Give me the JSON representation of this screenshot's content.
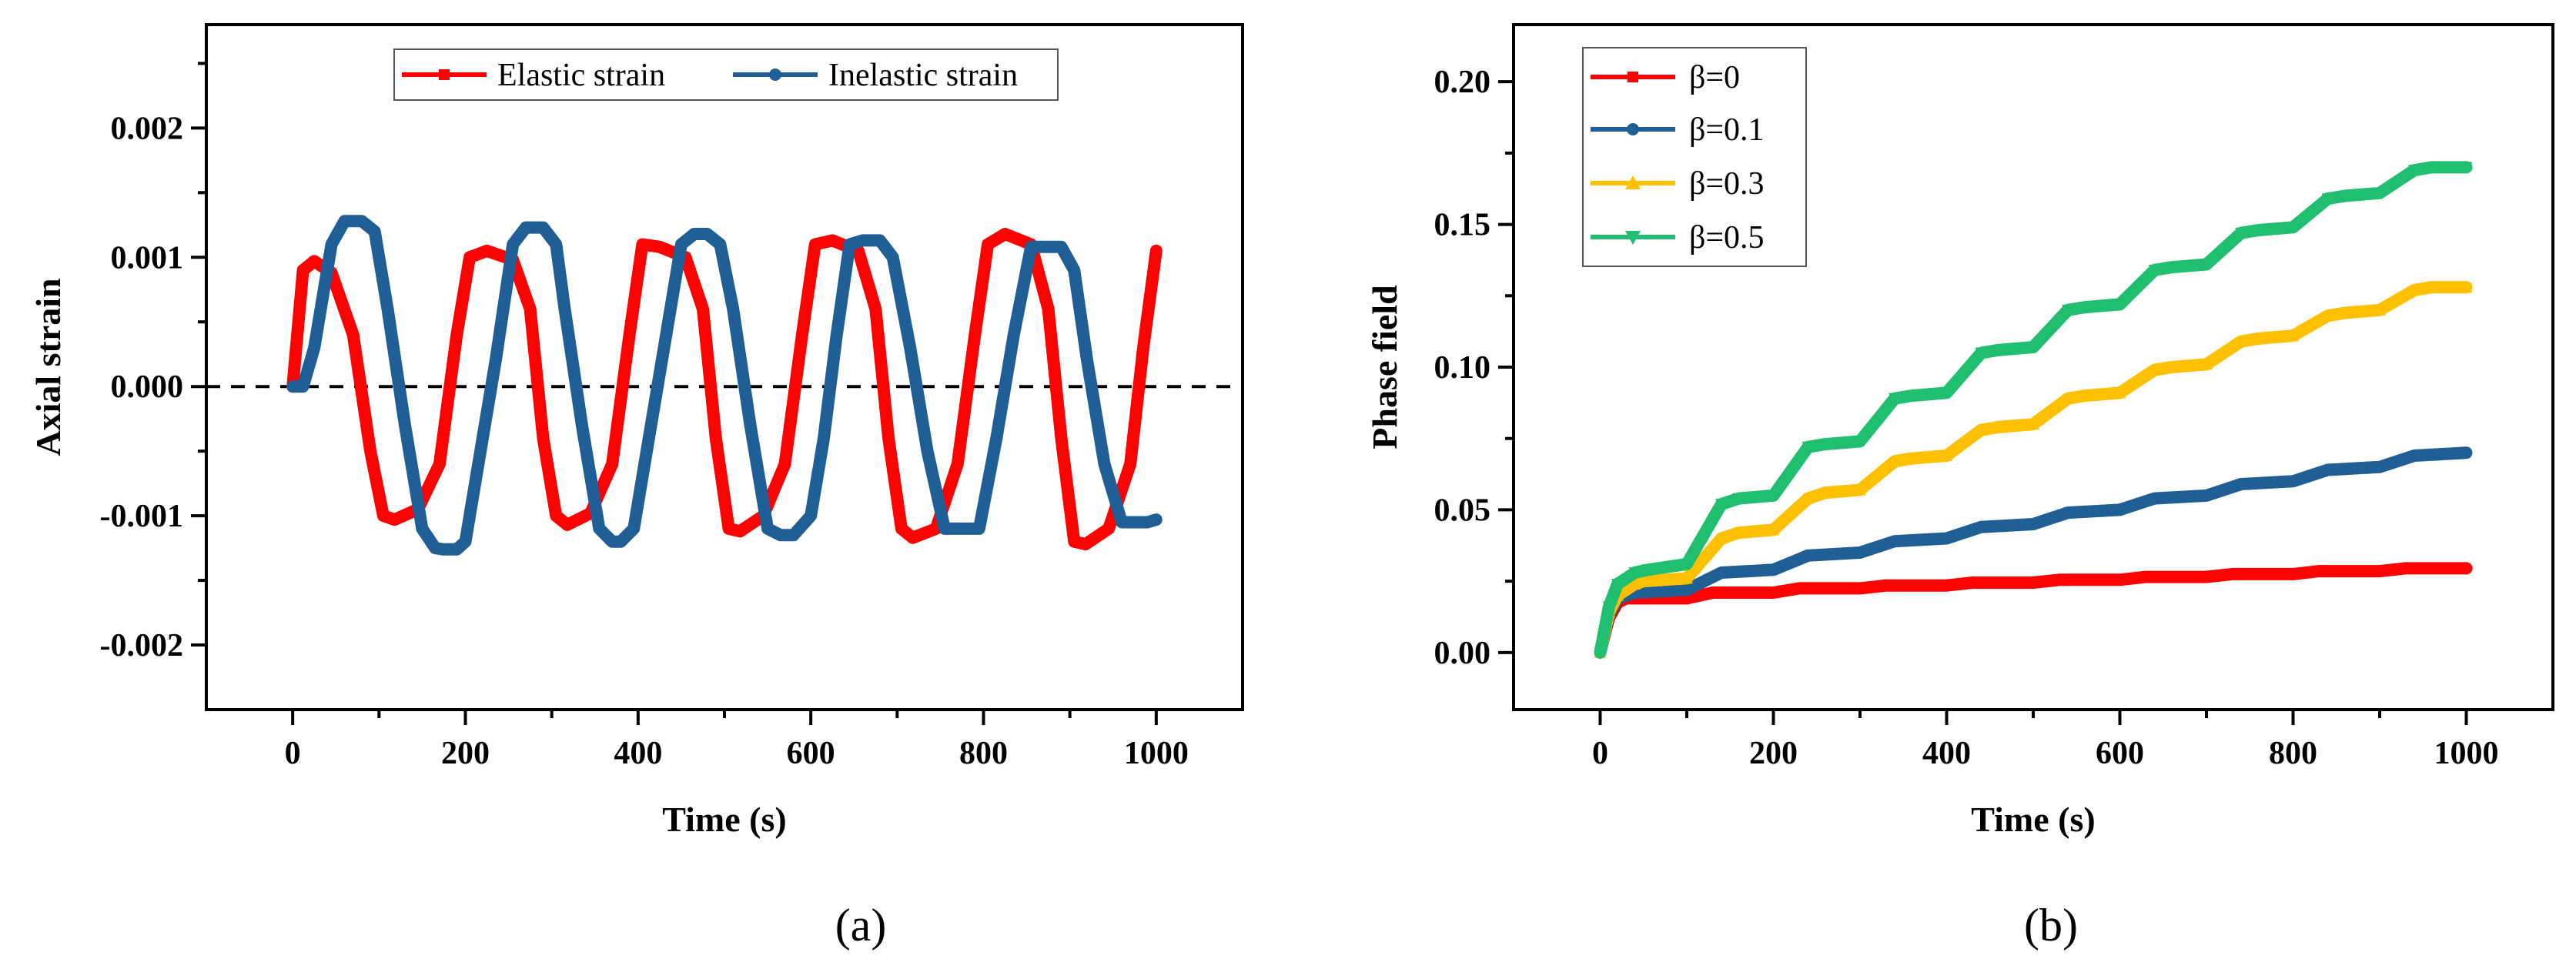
{
  "chart_data": [
    {
      "type": "line",
      "panel_label": "(a)",
      "xlabel": "Time (s)",
      "ylabel": "Axial strain",
      "xlim": [
        -100,
        1100
      ],
      "ylim": [
        -0.0025,
        0.0028
      ],
      "xticks": [
        0,
        200,
        400,
        600,
        800,
        1000
      ],
      "xtick_labels": [
        "0",
        "200",
        "400",
        "600",
        "800",
        "1000"
      ],
      "yticks": [
        -0.002,
        -0.001,
        0.0,
        0.001,
        0.002
      ],
      "ytick_labels": [
        "-0.002",
        "-0.001",
        "0.000",
        "0.001",
        "0.002"
      ],
      "reference_line": {
        "y": 0.0,
        "style": "dashed"
      },
      "legend_position": "top-center",
      "series": [
        {
          "name": "Elastic strain",
          "color": "#ff0000",
          "marker": "square",
          "x": [
            0,
            12,
            25,
            45,
            70,
            90,
            105,
            118,
            145,
            170,
            190,
            205,
            225,
            255,
            275,
            290,
            305,
            318,
            345,
            370,
            390,
            405,
            425,
            455,
            475,
            490,
            505,
            518,
            545,
            570,
            590,
            605,
            625,
            655,
            675,
            690,
            705,
            718,
            745,
            770,
            790,
            805,
            825,
            855,
            875,
            890,
            905,
            918,
            945,
            970,
            985,
            1000
          ],
          "values": [
            0.0,
            0.0009,
            0.00097,
            0.00088,
            0.0004,
            -0.0005,
            -0.001,
            -0.00103,
            -0.00095,
            -0.0006,
            0.0004,
            0.001,
            0.00105,
            0.00098,
            0.0006,
            -0.0004,
            -0.001,
            -0.00107,
            -0.00098,
            -0.0006,
            0.0004,
            0.0011,
            0.00108,
            0.001,
            0.0006,
            -0.0004,
            -0.0011,
            -0.00112,
            -0.001,
            -0.0006,
            0.0004,
            0.0011,
            0.00113,
            0.00105,
            0.0006,
            -0.0004,
            -0.0011,
            -0.00117,
            -0.0011,
            -0.0006,
            0.0004,
            0.0011,
            0.00118,
            0.0011,
            0.0006,
            -0.0004,
            -0.0012,
            -0.00122,
            -0.0011,
            -0.0006,
            0.0003,
            0.00105
          ]
        },
        {
          "name": "Inelastic strain",
          "color": "#1f5f95",
          "marker": "circle",
          "x": [
            0,
            12,
            25,
            45,
            60,
            80,
            95,
            110,
            130,
            150,
            165,
            175,
            190,
            200,
            215,
            235,
            255,
            270,
            290,
            305,
            315,
            335,
            355,
            370,
            380,
            395,
            410,
            430,
            450,
            465,
            480,
            495,
            510,
            530,
            550,
            565,
            580,
            600,
            615,
            630,
            645,
            660,
            680,
            695,
            715,
            735,
            755,
            770,
            785,
            795,
            815,
            835,
            855,
            870,
            890,
            905,
            920,
            940,
            960,
            975,
            990,
            1000
          ],
          "values": [
            0.0,
            0.0,
            0.0003,
            0.0011,
            0.00128,
            0.00128,
            0.0012,
            0.0006,
            -0.0003,
            -0.0011,
            -0.00125,
            -0.00126,
            -0.00126,
            -0.0012,
            -0.0006,
            0.0002,
            0.0011,
            0.00123,
            0.00123,
            0.0011,
            0.0006,
            -0.0003,
            -0.0011,
            -0.0012,
            -0.0012,
            -0.0011,
            -0.0005,
            0.0003,
            0.0011,
            0.00118,
            0.00118,
            0.0011,
            0.0006,
            -0.0003,
            -0.0011,
            -0.00115,
            -0.00115,
            -0.001,
            -0.0004,
            0.0004,
            0.0011,
            0.00113,
            0.00113,
            0.001,
            0.0003,
            -0.0005,
            -0.0011,
            -0.0011,
            -0.0011,
            -0.0011,
            -0.0004,
            0.0004,
            0.00108,
            0.00108,
            0.00108,
            0.0009,
            0.0002,
            -0.0006,
            -0.00105,
            -0.00105,
            -0.00105,
            -0.00103
          ]
        }
      ]
    },
    {
      "type": "line",
      "panel_label": "(b)",
      "xlabel": "Time (s)",
      "ylabel": "Phase field",
      "xlim": [
        -100,
        1100
      ],
      "ylim": [
        -0.02,
        0.22
      ],
      "xticks": [
        0,
        200,
        400,
        600,
        800,
        1000
      ],
      "xtick_labels": [
        "0",
        "200",
        "400",
        "600",
        "800",
        "1000"
      ],
      "yticks": [
        0.0,
        0.05,
        0.1,
        0.15,
        0.2
      ],
      "ytick_labels": [
        "0.00",
        "0.05",
        "0.10",
        "0.15",
        "0.20"
      ],
      "legend_position": "top-left",
      "series": [
        {
          "name": "β=0",
          "color": "#ff0000",
          "marker": "square",
          "x": [
            0,
            10,
            20,
            30,
            100,
            130,
            200,
            230,
            300,
            330,
            400,
            430,
            500,
            530,
            600,
            630,
            700,
            730,
            800,
            830,
            900,
            930,
            1000
          ],
          "values": [
            0.0,
            0.012,
            0.0175,
            0.019,
            0.019,
            0.021,
            0.021,
            0.0225,
            0.0225,
            0.0235,
            0.0235,
            0.0245,
            0.0245,
            0.0255,
            0.0255,
            0.0265,
            0.0265,
            0.0275,
            0.0275,
            0.0285,
            0.0285,
            0.0295,
            0.0295
          ]
        },
        {
          "name": "β=0.1",
          "color": "#1f5f95",
          "marker": "circle",
          "x": [
            0,
            10,
            20,
            40,
            100,
            140,
            200,
            240,
            300,
            340,
            400,
            440,
            500,
            540,
            600,
            640,
            700,
            740,
            800,
            840,
            900,
            940,
            1000
          ],
          "values": [
            0.0,
            0.013,
            0.019,
            0.021,
            0.022,
            0.028,
            0.029,
            0.034,
            0.035,
            0.039,
            0.04,
            0.044,
            0.045,
            0.049,
            0.05,
            0.054,
            0.055,
            0.059,
            0.06,
            0.064,
            0.065,
            0.069,
            0.07
          ]
        },
        {
          "name": "β=0.3",
          "color": "#ffc000",
          "marker": "triangle",
          "x": [
            0,
            10,
            20,
            40,
            50,
            100,
            140,
            160,
            200,
            240,
            260,
            300,
            340,
            360,
            400,
            440,
            460,
            500,
            540,
            560,
            600,
            640,
            660,
            700,
            740,
            760,
            800,
            840,
            860,
            900,
            940,
            960,
            1000
          ],
          "values": [
            0.0,
            0.014,
            0.02,
            0.024,
            0.025,
            0.026,
            0.04,
            0.042,
            0.043,
            0.054,
            0.056,
            0.057,
            0.067,
            0.068,
            0.069,
            0.078,
            0.079,
            0.08,
            0.089,
            0.09,
            0.091,
            0.099,
            0.1,
            0.101,
            0.109,
            0.11,
            0.111,
            0.118,
            0.119,
            0.12,
            0.127,
            0.128,
            0.128
          ]
        },
        {
          "name": "β=0.5",
          "color": "#1fbf6f",
          "marker": "triangle-down",
          "x": [
            0,
            10,
            20,
            40,
            55,
            100,
            140,
            160,
            200,
            240,
            260,
            300,
            340,
            360,
            400,
            440,
            460,
            500,
            540,
            560,
            600,
            640,
            660,
            700,
            740,
            760,
            800,
            840,
            860,
            900,
            940,
            960,
            1000
          ],
          "values": [
            0.0,
            0.016,
            0.024,
            0.028,
            0.029,
            0.031,
            0.052,
            0.054,
            0.055,
            0.072,
            0.073,
            0.074,
            0.089,
            0.09,
            0.091,
            0.105,
            0.106,
            0.107,
            0.12,
            0.121,
            0.122,
            0.134,
            0.135,
            0.136,
            0.147,
            0.148,
            0.149,
            0.159,
            0.16,
            0.161,
            0.169,
            0.17,
            0.17
          ]
        }
      ]
    }
  ]
}
